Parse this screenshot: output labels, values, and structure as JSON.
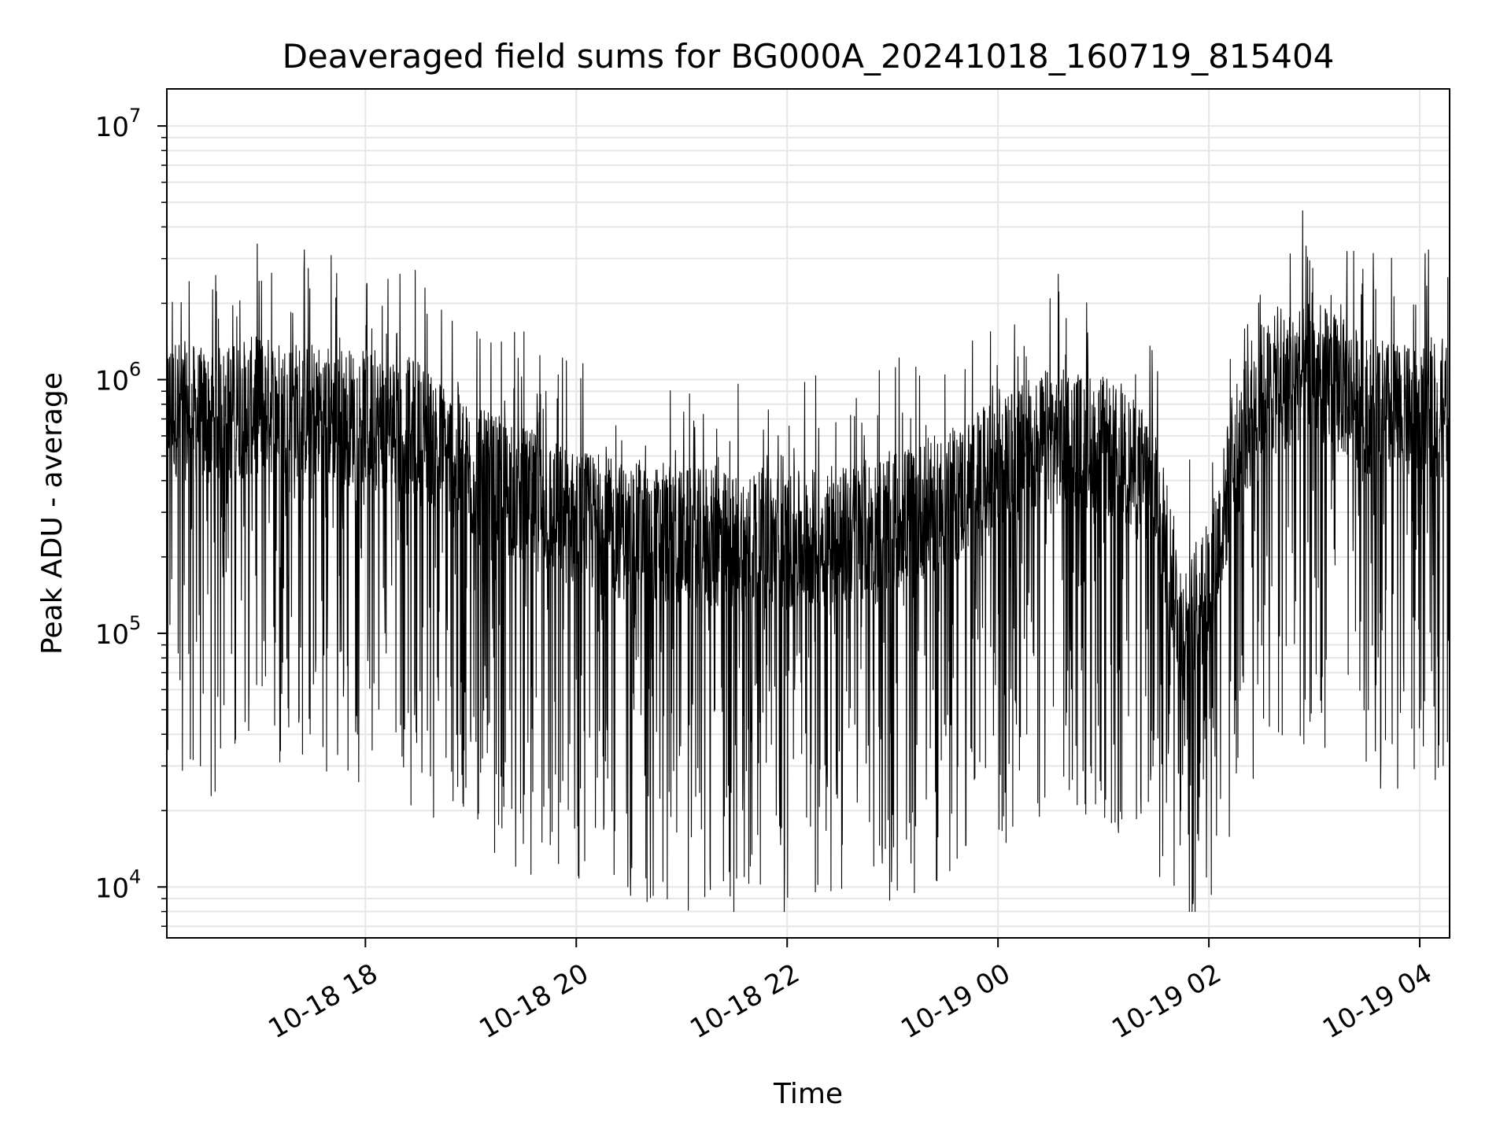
{
  "chart_data": {
    "type": "line",
    "title": "Deaveraged field sums for BG000A_20241018_160719_815404",
    "xlabel": "Time",
    "ylabel": "Peak ADU - average",
    "yscale": "log",
    "ylim": [
      6300,
      14000000
    ],
    "xlim": [
      "2024-10-18 16:07",
      "2024-10-19 04:17"
    ],
    "x_ticks": [
      "10-18 18",
      "10-18 20",
      "10-18 22",
      "10-19 00",
      "10-19 02",
      "10-19 04"
    ],
    "y_ticks": [
      {
        "base": "10",
        "exp": "4",
        "value": 10000
      },
      {
        "base": "10",
        "exp": "5",
        "value": 100000
      },
      {
        "base": "10",
        "exp": "6",
        "value": 1000000
      },
      {
        "base": "10",
        "exp": "7",
        "value": 10000000
      }
    ],
    "grid": true,
    "line_color": "#000000",
    "series": [
      {
        "x": [
          "2024-10-18 16:07",
          "2024-10-18 16:30",
          "2024-10-18 17:00",
          "2024-10-18 17:30",
          "2024-10-18 18:00",
          "2024-10-18 18:30",
          "2024-10-18 19:00",
          "2024-10-18 19:30",
          "2024-10-18 20:00",
          "2024-10-18 20:30",
          "2024-10-18 21:00",
          "2024-10-18 21:30",
          "2024-10-18 22:00",
          "2024-10-18 22:30",
          "2024-10-18 23:00",
          "2024-10-18 23:30",
          "2024-10-19 00:00",
          "2024-10-19 00:30",
          "2024-10-19 01:00",
          "2024-10-19 01:30",
          "2024-10-19 01:45",
          "2024-10-19 02:00",
          "2024-10-19 02:15",
          "2024-10-19 02:30",
          "2024-10-19 03:00",
          "2024-10-19 03:30",
          "2024-10-19 04:00",
          "2024-10-19 04:17"
        ],
        "y": [
          800000,
          700000,
          800000,
          750000,
          700000,
          650000,
          420000,
          350000,
          280000,
          250000,
          240000,
          230000,
          230000,
          240000,
          280000,
          330000,
          450000,
          600000,
          550000,
          380000,
          100000,
          150000,
          500000,
          900000,
          1100000,
          800000,
          700000,
          800000
        ]
      }
    ]
  }
}
